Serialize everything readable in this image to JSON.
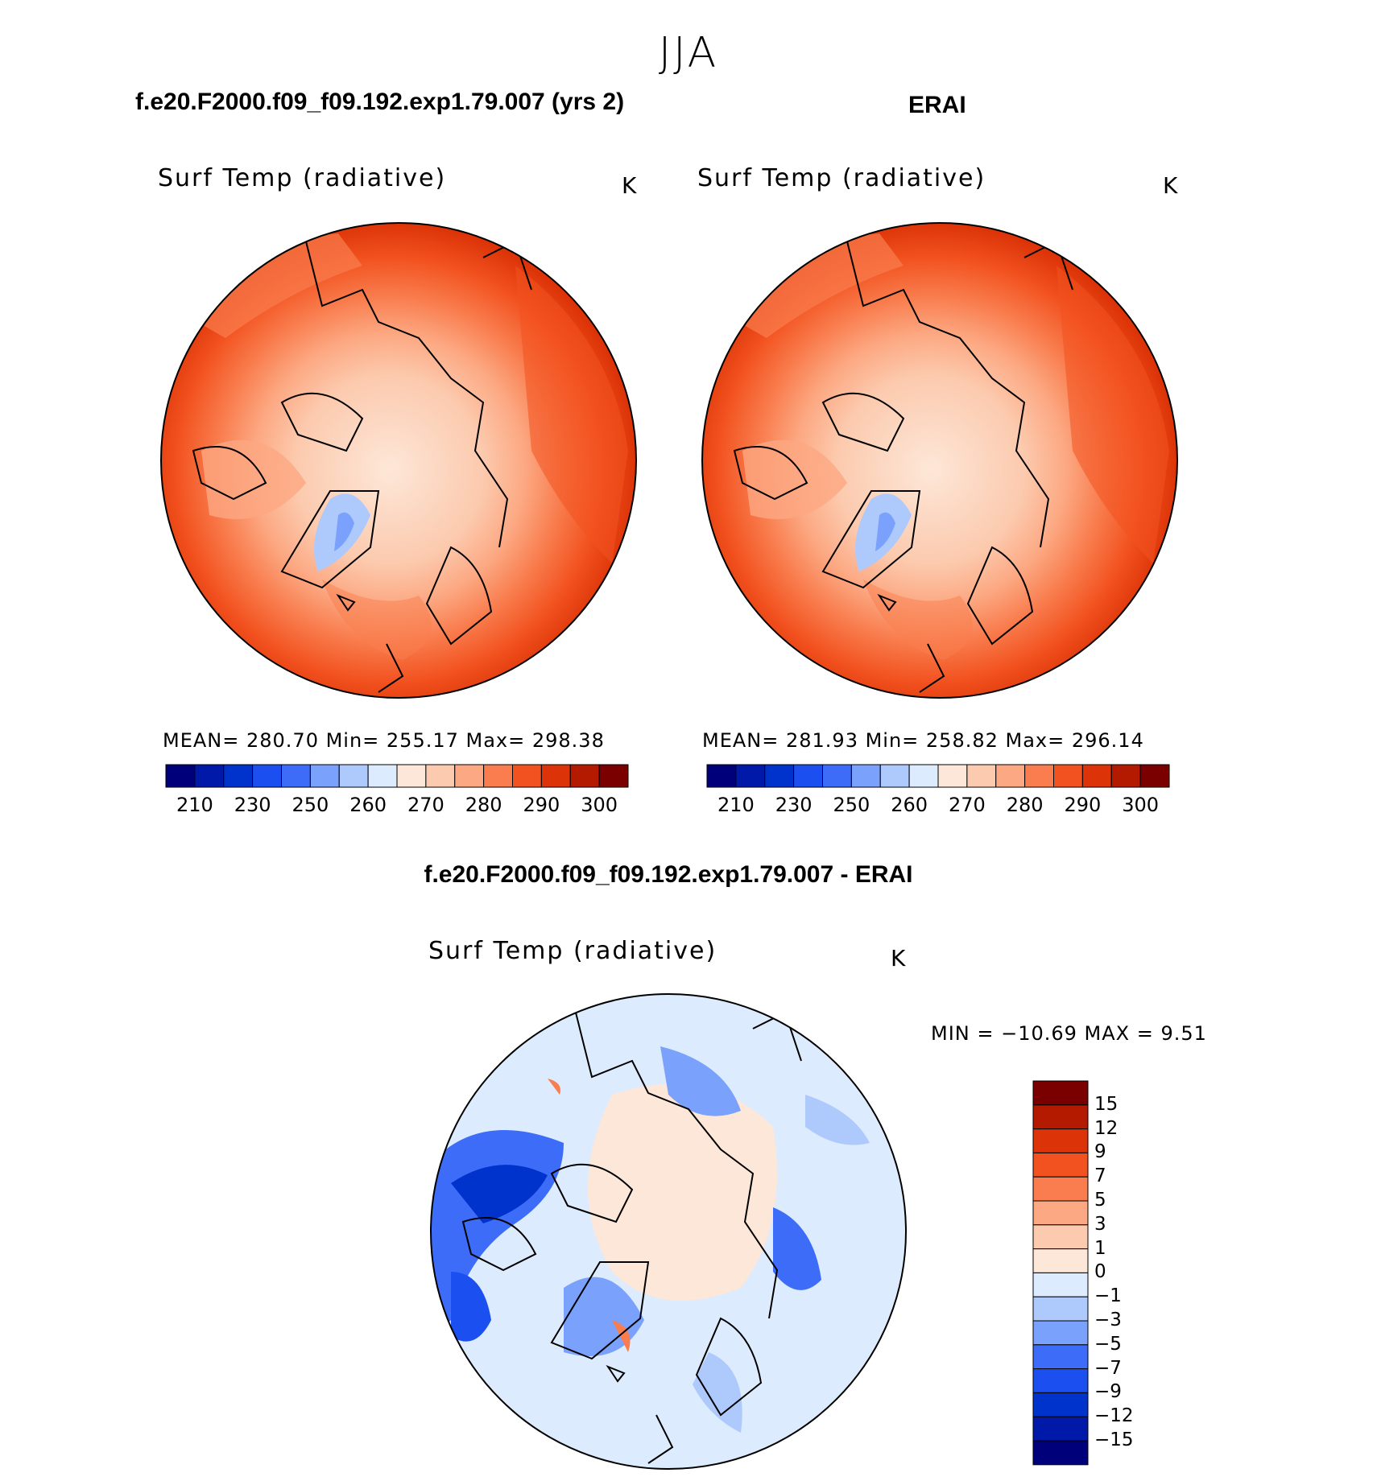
{
  "figure": {
    "season": "JJA",
    "panel1_title": "f.e20.F2000.f09_f09.192.exp1.79.007 (yrs 2)",
    "panel2_title": "ERAI",
    "diff_title": "f.e20.F2000.f09_f09.192.exp1.79.007 - ERAI"
  },
  "panels": [
    {
      "variable": "Surf Temp (radiative)",
      "units": "K",
      "stats": "MEAN= 280.70   Min= 255.17   Max= 298.38"
    },
    {
      "variable": "Surf Temp (radiative)",
      "units": "K",
      "stats": "MEAN= 281.93   Min= 258.82   Max= 296.14"
    },
    {
      "variable": "Surf Temp (radiative)",
      "units": "K",
      "stats": "MIN = −10.69  MAX =    9.51"
    }
  ],
  "abs_colorbar": {
    "colors": [
      "#00007a",
      "#0019a8",
      "#0032cc",
      "#1c4ff0",
      "#3d6df8",
      "#7aa1fb",
      "#aec9fc",
      "#dcebfd",
      "#fde7d8",
      "#fccaae",
      "#fca882",
      "#f97d4e",
      "#f2521f",
      "#dc3408",
      "#b31a00",
      "#7a0000"
    ],
    "tick_labels": [
      "210",
      "230",
      "250",
      "260",
      "270",
      "280",
      "290",
      "300"
    ]
  },
  "diff_colorbar": {
    "colors": [
      "#7a0000",
      "#b31a00",
      "#dc3408",
      "#f2521f",
      "#f97d4e",
      "#fca882",
      "#fccaae",
      "#fde7d8",
      "#dcebfd",
      "#aec9fc",
      "#7aa1fb",
      "#3d6df8",
      "#1c4ff0",
      "#0032cc",
      "#0019a8",
      "#00007a"
    ],
    "tick_labels": [
      "15",
      "12",
      "9",
      "7",
      "5",
      "3",
      "1",
      "0",
      "−1",
      "−3",
      "−5",
      "−7",
      "−9",
      "−12",
      "−15"
    ]
  }
}
